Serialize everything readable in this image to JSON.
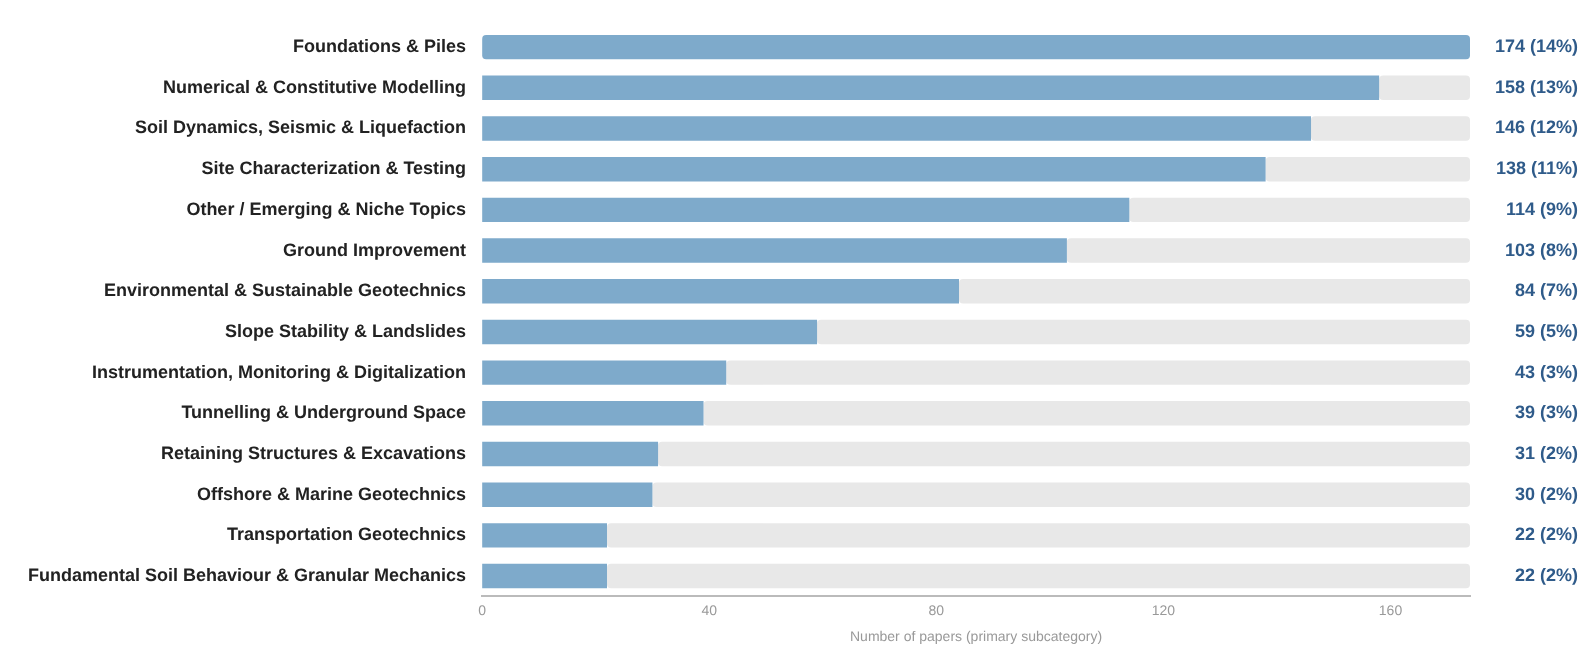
{
  "chart_data": {
    "type": "bar",
    "orientation": "horizontal",
    "stacked": true,
    "categories": [
      "Foundations & Piles",
      "Numerical & Constitutive Modelling",
      "Soil Dynamics, Seismic & Liquefaction",
      "Site Characterization & Testing",
      "Other / Emerging & Niche Topics",
      "Ground Improvement",
      "Environmental & Sustainable Geotechnics",
      "Slope Stability & Landslides",
      "Instrumentation, Monitoring & Digitalization",
      "Tunnelling & Underground Space",
      "Retaining Structures & Excavations",
      "Offshore & Marine Geotechnics",
      "Transportation Geotechnics",
      "Fundamental Soil Behaviour & Granular Mechanics"
    ],
    "series": [
      {
        "color": "#7eaacb",
        "values": [
          174,
          158,
          146,
          138,
          114,
          103,
          84,
          59,
          43,
          39,
          31,
          30,
          22,
          22
        ],
        "value_labels": [
          "174 (14%)",
          "158 (13%)",
          "146 (12%)",
          "138 (11%)",
          "114 (9%)",
          "103 (8%)",
          "84 (7%)",
          "59 (5%)",
          "43 (3%)",
          "39 (3%)",
          "31 (2%)",
          "30 (2%)",
          "22 (2%)",
          "22 (2%)"
        ]
      },
      {
        "color": "#e8e8e8",
        "values": [
          0,
          16,
          28,
          36,
          60,
          71,
          90,
          115,
          131,
          135,
          143,
          144,
          152,
          152
        ]
      }
    ],
    "xlabel": "Number of papers (primary subcategory)",
    "xlim": [
      0,
      174
    ],
    "xticks": [
      0,
      40,
      80,
      120,
      160
    ],
    "grid": false,
    "legend": false
  }
}
